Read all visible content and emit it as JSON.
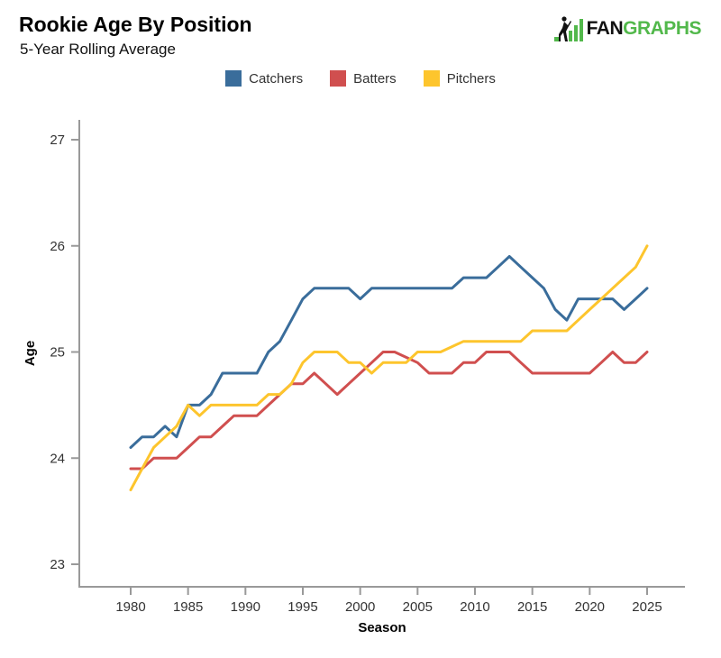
{
  "header": {
    "title": "Rookie Age By Position",
    "subtitle": "5-Year Rolling Average"
  },
  "logo": {
    "fan": "FAN",
    "graphs": "GRAPHS",
    "green": "#52b84b",
    "black": "#111111"
  },
  "legend": [
    {
      "label": "Catchers",
      "color": "#3a6d9b"
    },
    {
      "label": "Batters",
      "color": "#d04f4f"
    },
    {
      "label": "Pitchers",
      "color": "#fdc52d"
    }
  ],
  "axes": {
    "xlabel": "Season",
    "ylabel": "Age",
    "axis_color": "#999999",
    "tick_label_color": "#333333"
  },
  "chart_data": {
    "type": "line",
    "title": "Rookie Age By Position",
    "subtitle": "5-Year Rolling Average",
    "xlabel": "Season",
    "ylabel": "Age",
    "grid": false,
    "legend_position": "top",
    "xlim": [
      1975.5,
      2028.3
    ],
    "ylim": [
      22.8,
      27.2
    ],
    "xticks": [
      1980,
      1985,
      1990,
      1995,
      2000,
      2005,
      2010,
      2015,
      2020,
      2025
    ],
    "yticks": [
      23,
      24,
      25,
      26,
      27
    ],
    "x": [
      1980,
      1981,
      1982,
      1983,
      1984,
      1985,
      1986,
      1987,
      1988,
      1989,
      1990,
      1991,
      1992,
      1993,
      1994,
      1995,
      1996,
      1997,
      1998,
      1999,
      2000,
      2001,
      2002,
      2003,
      2004,
      2005,
      2006,
      2007,
      2008,
      2009,
      2010,
      2011,
      2012,
      2013,
      2014,
      2015,
      2016,
      2017,
      2018,
      2019,
      2020,
      2021,
      2022,
      2023,
      2024,
      2025
    ],
    "series": [
      {
        "name": "Catchers",
        "color": "#3a6d9b",
        "values": [
          24.1,
          24.2,
          24.2,
          24.3,
          24.2,
          24.5,
          24.5,
          24.6,
          24.8,
          24.8,
          24.8,
          24.8,
          25.0,
          25.1,
          25.3,
          25.5,
          25.6,
          25.6,
          25.6,
          25.6,
          25.5,
          25.6,
          25.6,
          25.6,
          25.6,
          25.6,
          25.6,
          25.6,
          25.6,
          25.7,
          25.7,
          25.7,
          25.8,
          25.9,
          25.8,
          25.7,
          25.6,
          25.4,
          25.3,
          25.5,
          25.5,
          25.5,
          25.5,
          25.4,
          25.5,
          25.6
        ]
      },
      {
        "name": "Batters",
        "color": "#d04f4f",
        "values": [
          23.9,
          23.9,
          24.0,
          24.0,
          24.0,
          24.1,
          24.2,
          24.2,
          24.3,
          24.4,
          24.4,
          24.4,
          24.5,
          24.6,
          24.7,
          24.7,
          24.8,
          24.7,
          24.6,
          24.7,
          24.8,
          24.9,
          25.0,
          25.0,
          24.95,
          24.9,
          24.8,
          24.8,
          24.8,
          24.9,
          24.9,
          25.0,
          25.0,
          25.0,
          24.9,
          24.8,
          24.8,
          24.8,
          24.8,
          24.8,
          24.8,
          24.9,
          25.0,
          24.9,
          24.9,
          25.0
        ]
      },
      {
        "name": "Pitchers",
        "color": "#fdc52d",
        "values": [
          23.7,
          23.9,
          24.1,
          24.2,
          24.3,
          24.5,
          24.4,
          24.5,
          24.5,
          24.5,
          24.5,
          24.5,
          24.6,
          24.6,
          24.7,
          24.9,
          25.0,
          25.0,
          25.0,
          24.9,
          24.9,
          24.8,
          24.9,
          24.9,
          24.9,
          25.0,
          25.0,
          25.0,
          25.05,
          25.1,
          25.1,
          25.1,
          25.1,
          25.1,
          25.1,
          25.2,
          25.2,
          25.2,
          25.2,
          25.3,
          25.4,
          25.5,
          25.6,
          25.7,
          25.8,
          26.0
        ]
      }
    ]
  }
}
